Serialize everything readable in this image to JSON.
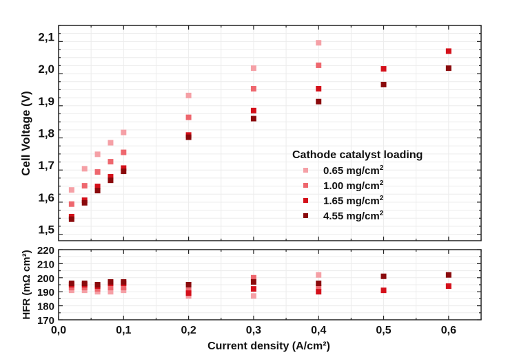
{
  "chart_data": [
    {
      "type": "scatter",
      "panel": "top",
      "title": "",
      "xlabel": "Current density (A/cm²)",
      "ylabel": "Cell Voltage (V)",
      "xlim": [
        0,
        0.65
      ],
      "ylim": [
        1.48,
        2.15
      ],
      "grid": true,
      "xticks": [
        "0,0",
        "0,1",
        "0,2",
        "0,3",
        "0,4",
        "0,5",
        "0,6"
      ],
      "yticks": [
        "1,5",
        "1,6",
        "1,7",
        "1,8",
        "1,9",
        "2,0",
        "2,1"
      ],
      "legend": {
        "title": "Cathode catalyst loading",
        "placement": "center-right",
        "entries": [
          "0.65 mg/cm",
          "1.00 mg/cm",
          "1.65 mg/cm",
          "4.55 mg/cm"
        ],
        "superscript": "2"
      },
      "series": [
        {
          "name": "0.65 mg/cm2",
          "color": "#f5a0a6",
          "x": [
            0.02,
            0.04,
            0.06,
            0.08,
            0.1,
            0.2,
            0.3,
            0.4
          ],
          "y": [
            1.638,
            1.704,
            1.749,
            1.785,
            1.817,
            1.932,
            2.017,
            2.096
          ]
        },
        {
          "name": "1.00 mg/cm2",
          "color": "#ee676e",
          "x": [
            0.02,
            0.04,
            0.06,
            0.08,
            0.1,
            0.2,
            0.3,
            0.4
          ],
          "y": [
            1.594,
            1.651,
            1.694,
            1.726,
            1.755,
            1.864,
            1.953,
            2.026
          ]
        },
        {
          "name": "1.65 mg/cm2",
          "color": "#d4101a",
          "x": [
            0.02,
            0.04,
            0.06,
            0.08,
            0.1,
            0.2,
            0.3,
            0.4,
            0.5,
            0.6
          ],
          "y": [
            1.555,
            1.606,
            1.649,
            1.679,
            1.706,
            1.809,
            1.885,
            1.953,
            2.015,
            2.07
          ]
        },
        {
          "name": "4.55 mg/cm2",
          "color": "#8a0a0c",
          "x": [
            0.02,
            0.04,
            0.06,
            0.08,
            0.1,
            0.2,
            0.3,
            0.4,
            0.5,
            0.6
          ],
          "y": [
            1.547,
            1.598,
            1.636,
            1.668,
            1.696,
            1.802,
            1.86,
            1.913,
            1.966,
            2.017
          ]
        }
      ]
    },
    {
      "type": "scatter",
      "panel": "bottom",
      "xlabel": "Current density (A/cm²)",
      "ylabel": "HFR (mΩ cm²)",
      "xlim": [
        0,
        0.65
      ],
      "ylim": [
        170,
        220
      ],
      "grid": true,
      "yticks": [
        "170",
        "180",
        "190",
        "200",
        "210",
        "220"
      ],
      "series": [
        {
          "name": "0.65 mg/cm2",
          "color": "#f5a0a6",
          "x": [
            0.02,
            0.04,
            0.06,
            0.08,
            0.1,
            0.2,
            0.3,
            0.4
          ],
          "y": [
            191,
            191,
            190,
            190,
            191,
            187,
            187,
            202
          ]
        },
        {
          "name": "1.00 mg/cm2",
          "color": "#ee676e",
          "x": [
            0.02,
            0.04,
            0.06,
            0.08,
            0.1,
            0.2,
            0.3,
            0.4
          ],
          "y": [
            193,
            193,
            192,
            193,
            193,
            191,
            200,
            193
          ]
        },
        {
          "name": "1.65 mg/cm2",
          "color": "#d4101a",
          "x": [
            0.02,
            0.04,
            0.06,
            0.08,
            0.1,
            0.2,
            0.3,
            0.4,
            0.5,
            0.6
          ],
          "y": [
            195,
            195,
            194,
            196,
            196,
            189,
            192,
            190,
            191,
            194
          ]
        },
        {
          "name": "4.55 mg/cm2",
          "color": "#8a0a0c",
          "x": [
            0.02,
            0.04,
            0.06,
            0.08,
            0.1,
            0.2,
            0.3,
            0.4,
            0.5,
            0.6
          ],
          "y": [
            196,
            196,
            195,
            197,
            197,
            195,
            197,
            196,
            201,
            202
          ]
        }
      ]
    }
  ]
}
